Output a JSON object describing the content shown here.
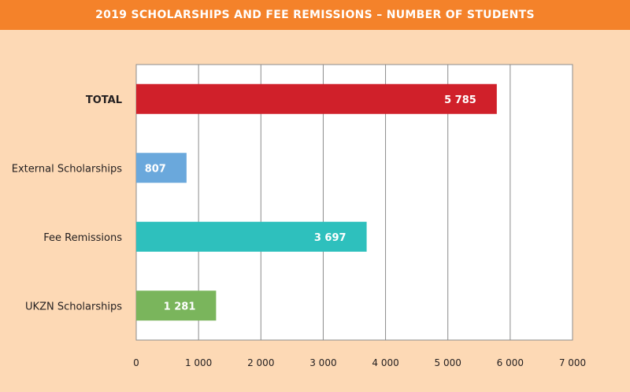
{
  "header": {
    "title": "2019 SCHOLARSHIPS AND FEE REMISSIONS – NUMBER OF STUDENTS"
  },
  "chart_data": {
    "type": "bar",
    "orientation": "horizontal",
    "title": "2019 SCHOLARSHIPS AND FEE REMISSIONS – NUMBER OF STUDENTS",
    "categories": [
      "TOTAL",
      "External Scholarships",
      "Fee Remissions",
      "UKZN Scholarships"
    ],
    "values": [
      5785,
      807,
      3697,
      1281
    ],
    "value_labels": [
      "5 785",
      "807",
      "3 697",
      "1 281"
    ],
    "colors": [
      "#d0202a",
      "#6aa8dc",
      "#2ec0bd",
      "#7ab55c"
    ],
    "bold_categories": [
      "TOTAL"
    ],
    "xlim": [
      0,
      7000
    ],
    "xticks": [
      0,
      1000,
      2000,
      3000,
      4000,
      5000,
      6000,
      7000
    ],
    "xtick_labels": [
      "0",
      "1 000",
      "2 000",
      "3 000",
      "4 000",
      "5 000",
      "6 000",
      "7 000"
    ],
    "grid": true,
    "xlabel": "",
    "ylabel": ""
  }
}
